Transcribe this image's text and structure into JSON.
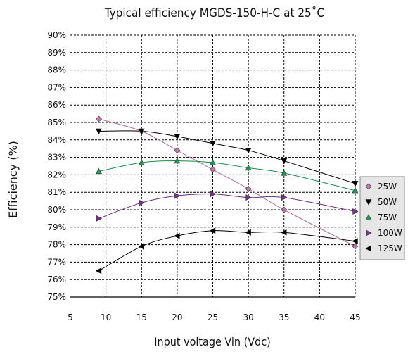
{
  "chart_data": {
    "type": "line",
    "title": "Typical efficiency MGDS-150-H-C at 25˚C",
    "xlabel": "Input voltage Vin (Vdc)",
    "ylabel": "Efficiency (%)",
    "xlim": [
      5,
      45
    ],
    "ylim": [
      75,
      90
    ],
    "x_ticks": [
      5,
      10,
      15,
      20,
      25,
      30,
      35,
      40,
      45
    ],
    "y_ticks": [
      75,
      76,
      77,
      78,
      79,
      80,
      81,
      82,
      83,
      84,
      85,
      86,
      87,
      88,
      89,
      90
    ],
    "x_tick_labels": [
      "5",
      "10",
      "15",
      "20",
      "25",
      "30",
      "35",
      "40",
      "45"
    ],
    "y_tick_labels": [
      "75%",
      "76%",
      "77%",
      "78%",
      "79%",
      "80%",
      "81%",
      "82%",
      "83%",
      "84%",
      "85%",
      "86%",
      "87%",
      "88%",
      "89%",
      "90%"
    ],
    "grid": true,
    "legend_position": "right",
    "x": [
      9,
      15,
      20,
      25,
      30,
      35,
      45
    ],
    "series": [
      {
        "name": "25W",
        "marker": "diamond",
        "color": "#b06a96",
        "marker_color": "#c07aa6",
        "values": [
          85.2,
          84.5,
          83.4,
          82.3,
          81.2,
          80.0,
          77.9
        ]
      },
      {
        "name": "50W",
        "marker": "triangle-down",
        "color": "#000000",
        "marker_color": "#000000",
        "values": [
          84.5,
          84.5,
          84.2,
          83.8,
          83.4,
          82.8,
          81.5
        ]
      },
      {
        "name": "75W",
        "marker": "triangle-up",
        "color": "#1a8a4a",
        "marker_color": "#1d9a56",
        "values": [
          82.2,
          82.7,
          82.8,
          82.7,
          82.4,
          82.1,
          81.1
        ]
      },
      {
        "name": "100W",
        "marker": "triangle-right",
        "color": "#6a2a80",
        "marker_color": "#7a3090",
        "values": [
          79.5,
          80.4,
          80.8,
          80.9,
          80.7,
          80.7,
          79.9
        ]
      },
      {
        "name": "125W",
        "marker": "triangle-left",
        "color": "#000000",
        "marker_color": "#000000",
        "values": [
          76.5,
          77.9,
          78.5,
          78.8,
          78.7,
          78.7,
          78.2
        ]
      }
    ]
  }
}
